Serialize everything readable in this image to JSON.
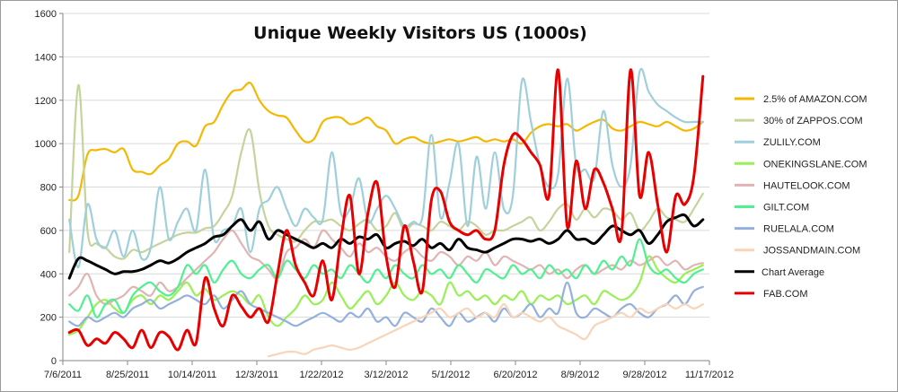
{
  "chart_data": {
    "type": "line",
    "title": "Unique Weekly Visitors US (1000s)",
    "xlabel": "",
    "ylabel": "",
    "ylim": [
      0,
      1600
    ],
    "yticks": [
      0,
      200,
      400,
      600,
      800,
      1000,
      1200,
      1400,
      1600
    ],
    "xlim": [
      "2011-07-06",
      "2012-11-17"
    ],
    "xtick_labels": [
      "7/6/2011",
      "8/25/2011",
      "10/14/2011",
      "12/3/2011",
      "1/22/2012",
      "3/12/2012",
      "5/1/2012",
      "6/20/2012",
      "8/9/2012",
      "9/28/2012",
      "11/17/2012"
    ],
    "grid": "horizontal",
    "legend_position": "right",
    "weeks": [
      "2011-07-11",
      "2011-07-18",
      "2011-07-25",
      "2011-08-01",
      "2011-08-08",
      "2011-08-15",
      "2011-08-22",
      "2011-08-29",
      "2011-09-05",
      "2011-09-12",
      "2011-09-19",
      "2011-09-26",
      "2011-10-03",
      "2011-10-10",
      "2011-10-17",
      "2011-10-24",
      "2011-10-31",
      "2011-11-07",
      "2011-11-14",
      "2011-11-21",
      "2011-11-28",
      "2011-12-05",
      "2011-12-12",
      "2011-12-19",
      "2011-12-26",
      "2012-01-02",
      "2012-01-09",
      "2012-01-16",
      "2012-01-23",
      "2012-01-30",
      "2012-02-06",
      "2012-02-13",
      "2012-02-20",
      "2012-02-27",
      "2012-03-05",
      "2012-03-12",
      "2012-03-19",
      "2012-03-26",
      "2012-04-02",
      "2012-04-09",
      "2012-04-16",
      "2012-04-23",
      "2012-04-30",
      "2012-05-07",
      "2012-05-14",
      "2012-05-21",
      "2012-05-28",
      "2012-06-04",
      "2012-06-11",
      "2012-06-18",
      "2012-06-25",
      "2012-07-02",
      "2012-07-09",
      "2012-07-16",
      "2012-07-23",
      "2012-07-30",
      "2012-08-06",
      "2012-08-13",
      "2012-08-20",
      "2012-08-27",
      "2012-09-03",
      "2012-09-10",
      "2012-09-17",
      "2012-09-24",
      "2012-10-01",
      "2012-10-08",
      "2012-10-15",
      "2012-10-22",
      "2012-10-29",
      "2012-11-05",
      "2012-11-12"
    ],
    "series": [
      {
        "name": "2.5% of AMAZON.COM",
        "color": "#F5B800",
        "start": 0,
        "values": [
          740,
          760,
          950,
          970,
          975,
          960,
          975,
          880,
          870,
          860,
          900,
          930,
          1000,
          1010,
          990,
          1080,
          1100,
          1180,
          1240,
          1250,
          1280,
          1200,
          1150,
          1130,
          1120,
          1060,
          1010,
          1020,
          1100,
          1120,
          1120,
          1090,
          1100,
          1120,
          1080,
          1060,
          1000,
          1020,
          1030,
          1010,
          1000,
          1010,
          1020,
          1010,
          1020,
          1030,
          1010,
          1020,
          1010,
          1020,
          1000,
          1050,
          1080,
          1090,
          1080,
          1090,
          1060,
          1080,
          1100,
          1110,
          1070,
          1060,
          1080,
          1100,
          1090,
          1080,
          1100,
          1080,
          1060,
          1070,
          1100
        ]
      },
      {
        "name": "30% of ZAPPOS.COM",
        "color": "#C4D49C",
        "start": 0,
        "values": [
          500,
          1270,
          600,
          540,
          520,
          480,
          470,
          510,
          500,
          520,
          540,
          560,
          580,
          590,
          590,
          610,
          620,
          680,
          760,
          960,
          1060,
          780,
          620,
          580,
          560,
          550,
          600,
          640,
          640,
          650,
          620,
          600,
          630,
          650,
          600,
          620,
          680,
          600,
          630,
          620,
          600,
          640,
          620,
          600,
          640,
          620,
          580,
          600,
          600,
          620,
          640,
          660,
          600,
          640,
          700,
          720,
          650,
          700,
          660,
          700,
          690,
          650,
          680,
          600,
          640,
          700,
          660,
          650,
          640,
          700,
          770
        ]
      },
      {
        "name": "ZULILY.COM",
        "color": "#9ECFDB",
        "start": 0,
        "values": [
          650,
          430,
          720,
          560,
          520,
          600,
          480,
          600,
          470,
          520,
          800,
          560,
          640,
          700,
          600,
          880,
          560,
          600,
          620,
          700,
          500,
          700,
          740,
          800,
          700,
          620,
          700,
          660,
          650,
          960,
          680,
          700,
          840,
          640,
          700,
          760,
          700,
          620,
          640,
          660,
          1040,
          660,
          820,
          1000,
          620,
          940,
          700,
          960,
          700,
          760,
          1290,
          1100,
          900,
          800,
          860,
          1300,
          900,
          880,
          840,
          1150,
          900,
          800,
          900,
          1330,
          1240,
          1180,
          1150,
          1120,
          1100,
          1100,
          1100
        ]
      },
      {
        "name": "ONEKINGSLANE.COM",
        "color": "#99F055",
        "start": 0,
        "values": [
          120,
          140,
          200,
          260,
          280,
          240,
          220,
          280,
          300,
          260,
          300,
          280,
          320,
          360,
          300,
          330,
          280,
          300,
          320,
          300,
          260,
          300,
          200,
          160,
          200,
          240,
          300,
          260,
          280,
          360,
          300,
          240,
          280,
          320,
          260,
          300,
          360,
          300,
          280,
          320,
          300,
          260,
          360,
          300,
          320,
          280,
          300,
          260,
          300,
          280,
          320,
          260,
          300,
          280,
          300,
          260,
          280,
          300,
          260,
          320,
          300,
          280,
          300,
          360,
          480,
          420,
          380,
          360,
          400,
          420,
          440
        ]
      },
      {
        "name": "HAUTELOOK.COM",
        "color": "#E0B4B4",
        "start": 0,
        "values": [
          300,
          340,
          400,
          300,
          260,
          280,
          300,
          340,
          320,
          300,
          360,
          320,
          340,
          380,
          420,
          460,
          500,
          560,
          600,
          540,
          480,
          460,
          420,
          380,
          500,
          520,
          560,
          520,
          600,
          560,
          520,
          480,
          540,
          500,
          520,
          480,
          460,
          500,
          520,
          480,
          460,
          500,
          480,
          440,
          480,
          460,
          500,
          440,
          480,
          460,
          440,
          420,
          440,
          400,
          420,
          380,
          420,
          440,
          400,
          420,
          440,
          420,
          460,
          440,
          460,
          480,
          440,
          460,
          420,
          440,
          450
        ]
      },
      {
        "name": "GILT.COM",
        "color": "#50F090",
        "start": 0,
        "values": [
          260,
          230,
          300,
          200,
          260,
          280,
          220,
          300,
          340,
          360,
          320,
          300,
          340,
          440,
          400,
          440,
          360,
          420,
          460,
          400,
          380,
          420,
          440,
          380,
          460,
          420,
          380,
          440,
          400,
          420,
          380,
          440,
          400,
          360,
          420,
          380,
          440,
          400,
          380,
          440,
          400,
          420,
          380,
          440,
          400,
          360,
          420,
          400,
          380,
          440,
          400,
          420,
          380,
          440,
          400,
          420,
          380,
          440,
          400,
          460,
          420,
          480,
          440,
          560,
          440,
          400,
          420,
          380,
          360,
          400,
          420
        ]
      },
      {
        "name": "RUELALA.COM",
        "color": "#94B0DC",
        "start": 0,
        "values": [
          180,
          160,
          200,
          180,
          200,
          220,
          200,
          240,
          260,
          280,
          240,
          260,
          280,
          300,
          280,
          260,
          300,
          240,
          280,
          320,
          260,
          240,
          220,
          200,
          180,
          160,
          180,
          200,
          220,
          200,
          180,
          220,
          200,
          240,
          180,
          200,
          160,
          220,
          200,
          180,
          240,
          200,
          160,
          220,
          180,
          200,
          220,
          180,
          240,
          200,
          220,
          260,
          200,
          240,
          220,
          360,
          220,
          200,
          240,
          220,
          200,
          240,
          260,
          220,
          200,
          240,
          260,
          300,
          260,
          320,
          340
        ]
      },
      {
        "name": "JOSSANDMAIN.COM",
        "color": "#F8D4B8",
        "start": 22,
        "values": [
          20,
          30,
          40,
          40,
          30,
          50,
          60,
          70,
          60,
          50,
          60,
          80,
          100,
          120,
          140,
          160,
          180,
          200,
          220,
          240,
          200,
          220,
          240,
          200,
          220,
          200,
          260,
          200,
          220,
          200,
          180,
          200,
          160,
          140,
          120,
          100,
          160,
          180,
          200,
          220,
          200,
          240,
          220,
          240,
          260,
          240,
          260,
          240,
          260
        ]
      },
      {
        "name": "Chart Average",
        "color": "#000000",
        "start": 0,
        "values": [
          380,
          470,
          460,
          440,
          420,
          400,
          410,
          410,
          420,
          440,
          460,
          450,
          470,
          500,
          520,
          540,
          570,
          580,
          620,
          650,
          600,
          640,
          560,
          600,
          580,
          560,
          540,
          520,
          540,
          520,
          560,
          540,
          570,
          560,
          580,
          520,
          540,
          550,
          530,
          560,
          520,
          540,
          510,
          560,
          520,
          510,
          500,
          520,
          540,
          560,
          560,
          550,
          560,
          540,
          560,
          600,
          560,
          560,
          540,
          580,
          620,
          600,
          580,
          600,
          540,
          580,
          640,
          660,
          670,
          620,
          650
        ]
      },
      {
        "name": "FAB.COM",
        "color": "#E80000",
        "start": 0,
        "values": [
          130,
          140,
          70,
          100,
          80,
          130,
          100,
          60,
          140,
          60,
          130,
          110,
          50,
          140,
          80,
          380,
          240,
          160,
          300,
          250,
          200,
          240,
          180,
          400,
          600,
          440,
          360,
          300,
          460,
          280,
          560,
          760,
          400,
          680,
          820,
          480,
          340,
          620,
          460,
          320,
          740,
          780,
          640,
          600,
          580,
          600,
          560,
          600,
          900,
          1040,
          1020,
          960,
          900,
          760,
          1340,
          620,
          920,
          700,
          880,
          820,
          700,
          580,
          1340,
          760,
          960,
          720,
          500,
          760,
          720,
          850,
          1310
        ]
      }
    ]
  }
}
